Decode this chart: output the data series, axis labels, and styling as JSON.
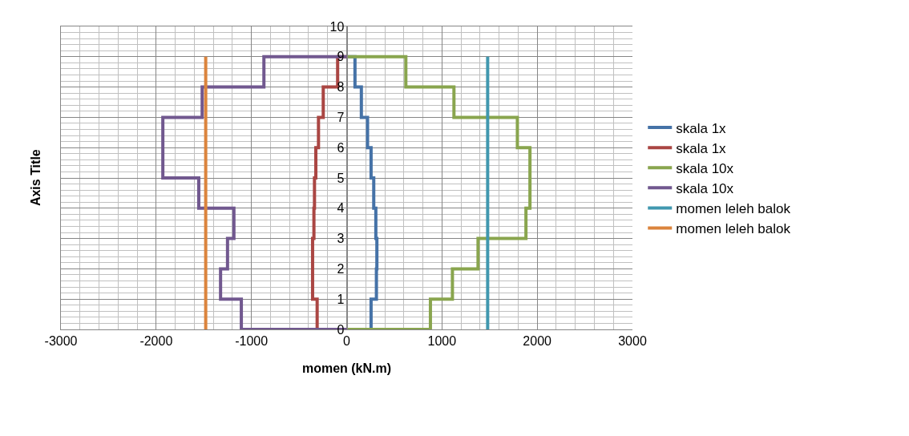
{
  "chart_data": {
    "type": "line",
    "xlabel": "momen (kN.m)",
    "ylabel": "Axis Title",
    "xlim": [
      -3000,
      3000
    ],
    "xticks": [
      -3000,
      -2000,
      -1000,
      0,
      1000,
      2000,
      3000
    ],
    "ylim": [
      0,
      10
    ],
    "yticks": [
      0,
      1,
      2,
      3,
      4,
      5,
      6,
      7,
      8,
      9,
      10
    ],
    "grid": true,
    "legend": "right",
    "line_style": "solid",
    "marker": "none",
    "series": [
      {
        "name": "skala 1x",
        "color": "#4572a7",
        "x": [
          0,
          256,
          256,
          312,
          312,
          317,
          317,
          306,
          306,
          284,
          284,
          256,
          256,
          219,
          219,
          154,
          154,
          87,
          87,
          0
        ],
        "values": [
          0,
          0,
          1,
          1,
          2,
          2,
          3,
          3,
          4,
          4,
          5,
          5,
          6,
          6,
          7,
          7,
          8,
          8,
          9,
          9
        ]
      },
      {
        "name": "skala 1x",
        "color": "#aa4643",
        "x": [
          0,
          -310,
          -310,
          -358,
          -358,
          -344,
          -344,
          -338,
          -338,
          -324,
          -324,
          -296,
          -296,
          -246,
          -246,
          -95,
          -95,
          0
        ],
        "values": [
          0,
          0,
          1,
          1,
          3,
          3,
          4,
          4,
          5,
          5,
          6,
          6,
          7,
          7,
          8,
          8,
          9,
          9
        ]
      },
      {
        "name": "skala 10x",
        "color": "#89a54e",
        "x": [
          0,
          879,
          879,
          1110,
          1110,
          1379,
          1379,
          1882,
          1882,
          1924,
          1924,
          1792,
          1792,
          1126,
          1126,
          621,
          621,
          0
        ],
        "values": [
          0,
          0,
          1,
          1,
          2,
          2,
          3,
          3,
          4,
          4,
          6,
          6,
          7,
          7,
          8,
          8,
          9,
          9
        ]
      },
      {
        "name": "skala 10x",
        "color": "#71588f",
        "x": [
          0,
          -1106,
          -1106,
          -1324,
          -1324,
          -1251,
          -1251,
          -1184,
          -1184,
          -1553,
          -1553,
          -1930,
          -1930,
          -1517,
          -1517,
          -869,
          -869,
          0
        ],
        "values": [
          0,
          0,
          1,
          1,
          2,
          2,
          3,
          3,
          4,
          4,
          5,
          5,
          7,
          7,
          8,
          8,
          9,
          9
        ]
      },
      {
        "name": "momen leleh balok",
        "color": "#4198af",
        "x": [
          1480,
          1480
        ],
        "values": [
          0,
          9
        ]
      },
      {
        "name": "momen leleh balok",
        "color": "#db843d",
        "x": [
          -1480,
          -1480
        ],
        "values": [
          0,
          9
        ]
      }
    ]
  }
}
